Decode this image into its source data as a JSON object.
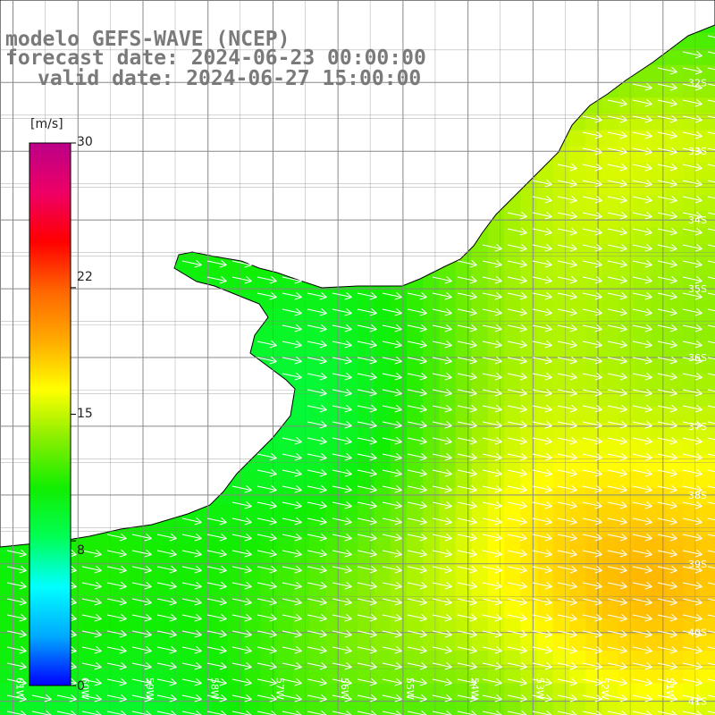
{
  "title": {
    "line1": "modelo GEFS-WAVE (NCEP)",
    "line2": "forecast date: 2024-06-23 00:00:00",
    "line3": "valid date: 2024-06-27 15:00:00"
  },
  "colorbar": {
    "unit": "[m/s]",
    "ticks": [
      "30",
      "22",
      "15",
      "8",
      "0"
    ],
    "tick_values": [
      30,
      22,
      15,
      8,
      0
    ],
    "range": [
      0,
      30
    ],
    "colors": [
      "#0000ff",
      "#00aaff",
      "#00ffff",
      "#00ff55",
      "#11ee00",
      "#88ee00",
      "#ffff00",
      "#ffaa00",
      "#ff6600",
      "#ff0000",
      "#ee0066",
      "#bb0088"
    ]
  },
  "map": {
    "lat_labels": [
      "32S",
      "33S",
      "34S",
      "35S",
      "36S",
      "37S",
      "38S",
      "39S",
      "40S",
      "41S"
    ],
    "lon_labels": [
      "61W",
      "60W",
      "59W",
      "58W",
      "57W",
      "56W",
      "55W",
      "54W",
      "53W",
      "52W",
      "51W"
    ],
    "lon_range": [
      -61.2,
      -50.2
    ],
    "lat_range": [
      -41.2,
      -30.8
    ],
    "wind_direction": "from west-northwest (arrows point east-southeast)",
    "land_color": "#ffffff",
    "grid_color": "#888888"
  }
}
